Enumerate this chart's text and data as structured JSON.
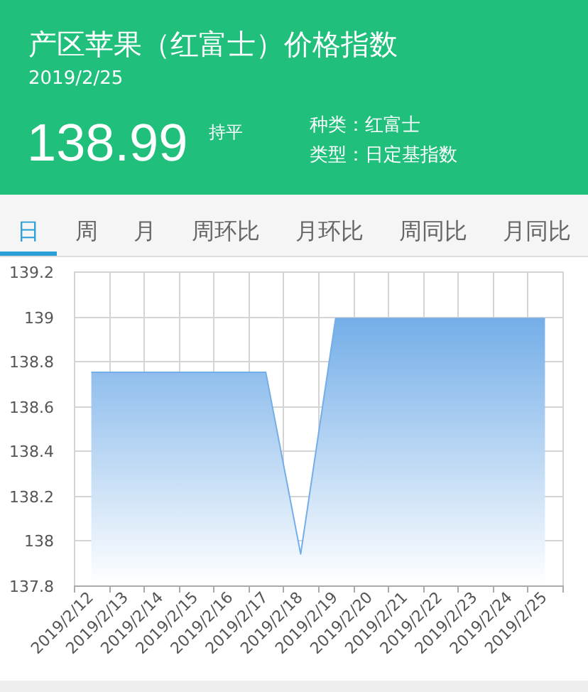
{
  "chart_data": {
    "type": "area",
    "title": "产区苹果（红富士）价格指数",
    "subtitle": "2019/2/25",
    "annotations": [
      "138.99",
      "持平",
      "种类：红富士",
      "类型：日定基指数",
      "日",
      "周",
      "月",
      "周环比",
      "月环比",
      "周同比",
      "月同比"
    ],
    "categories": [
      "2019/2/12",
      "2019/2/13",
      "2019/2/14",
      "2019/2/15",
      "2019/2/16",
      "2019/2/17",
      "2019/2/18",
      "2019/2/19",
      "2019/2/20",
      "2019/2/21",
      "2019/2/22",
      "2019/2/23",
      "2019/2/24",
      "2019/2/25"
    ],
    "values": [
      138.75,
      138.75,
      138.75,
      138.75,
      138.75,
      138.75,
      137.94,
      138.99,
      138.99,
      138.99,
      138.99,
      138.99,
      138.99,
      138.99
    ],
    "color": "#74aee8",
    "ylim": [
      137.8,
      139.2
    ],
    "yticks": [
      137.8,
      138,
      138.2,
      138.4,
      138.6,
      138.8,
      139,
      139.2
    ],
    "grid": true
  }
}
